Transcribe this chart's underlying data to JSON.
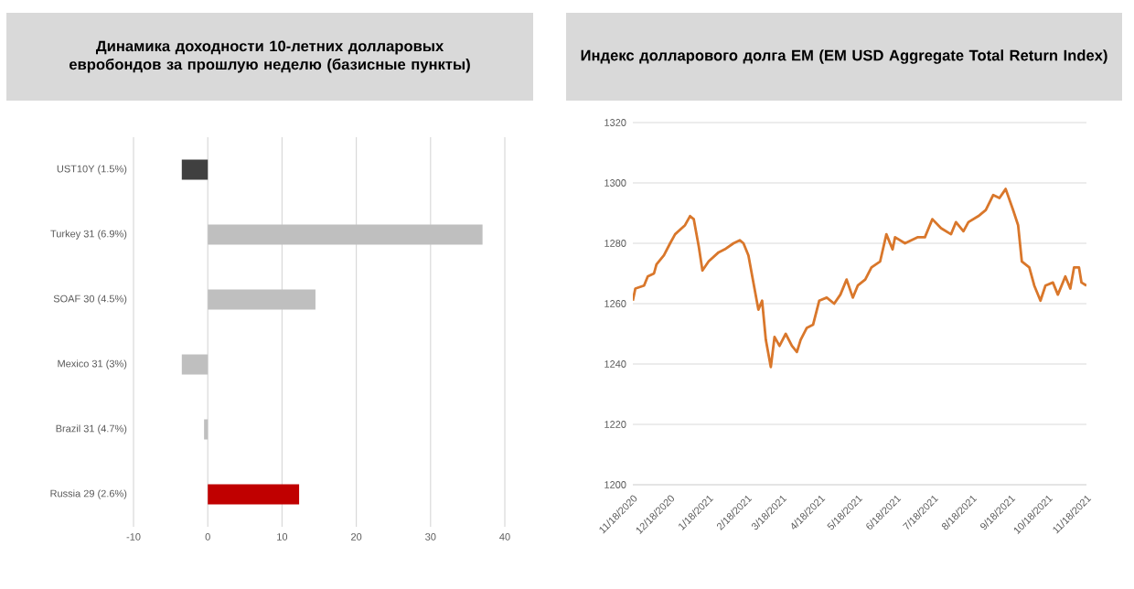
{
  "chart_data": [
    {
      "type": "bar",
      "orientation": "horizontal",
      "title": "Динамика доходности 10-летних долларовых евробондов за прошлую неделю (базисные пункты)",
      "categories": [
        "UST10Y (1.5%)",
        "Turkey 31 (6.9%)",
        "SOAF 30 (4.5%)",
        "Mexico 31 (3%)",
        "Brazil 31 (4.7%)",
        "Russia 29 (2.6%)"
      ],
      "values": [
        -3.5,
        37,
        14.5,
        -3.5,
        -0.5,
        12.3
      ],
      "colors": [
        "#404040",
        "#bfbfbf",
        "#bfbfbf",
        "#bfbfbf",
        "#bfbfbf",
        "#c00000"
      ],
      "xlim": [
        -10,
        40
      ],
      "xticks": [
        -10,
        0,
        10,
        20,
        30,
        40
      ],
      "grid": "x"
    },
    {
      "type": "line",
      "title": "Индекс долларового долга EM (EM USD Aggregate Total Return Index)",
      "x": [
        "2020-11-18",
        "2020-11-20",
        "2020-11-27",
        "2020-11-30",
        "2020-12-05",
        "2020-12-07",
        "2020-12-13",
        "2020-12-18",
        "2020-12-22",
        "2020-12-30",
        "2021-01-03",
        "2021-01-06",
        "2021-01-10",
        "2021-01-13",
        "2021-01-18",
        "2021-01-26",
        "2021-01-31",
        "2021-02-07",
        "2021-02-12",
        "2021-02-15",
        "2021-02-19",
        "2021-02-23",
        "2021-02-27",
        "2021-03-02",
        "2021-03-05",
        "2021-03-09",
        "2021-03-12",
        "2021-03-16",
        "2021-03-21",
        "2021-03-26",
        "2021-03-30",
        "2021-04-02",
        "2021-04-07",
        "2021-04-12",
        "2021-04-17",
        "2021-04-23",
        "2021-04-29",
        "2021-05-04",
        "2021-05-09",
        "2021-05-14",
        "2021-05-18",
        "2021-05-24",
        "2021-05-29",
        "2021-06-05",
        "2021-06-10",
        "2021-06-15",
        "2021-06-17",
        "2021-06-25",
        "2021-07-05",
        "2021-07-11",
        "2021-07-17",
        "2021-07-24",
        "2021-08-01",
        "2021-08-05",
        "2021-08-11",
        "2021-08-15",
        "2021-08-23",
        "2021-08-29",
        "2021-09-04",
        "2021-09-09",
        "2021-09-14",
        "2021-09-20",
        "2021-09-24",
        "2021-09-27",
        "2021-10-03",
        "2021-10-07",
        "2021-10-12",
        "2021-10-16",
        "2021-10-22",
        "2021-10-26",
        "2021-11-01",
        "2021-11-05",
        "2021-11-08",
        "2021-11-12",
        "2021-11-14",
        "2021-11-18"
      ],
      "values": [
        1261,
        1265,
        1266,
        1269,
        1270,
        1273,
        1276,
        1280,
        1283,
        1286,
        1289,
        1288,
        1279,
        1271,
        1274,
        1277,
        1278,
        1280,
        1281,
        1280,
        1276,
        1267,
        1258,
        1261,
        1248,
        1239,
        1249,
        1246,
        1250,
        1246,
        1244,
        1248,
        1252,
        1253,
        1261,
        1262,
        1260,
        1263,
        1268,
        1262,
        1266,
        1268,
        1272,
        1274,
        1283,
        1278,
        1282,
        1280,
        1282,
        1282,
        1288,
        1285,
        1283,
        1287,
        1284,
        1287,
        1289,
        1291,
        1296,
        1295,
        1298,
        1291,
        1286,
        1274,
        1272,
        1266,
        1261,
        1266,
        1267,
        1263,
        1269,
        1265,
        1272,
        1272,
        1267,
        1266
      ],
      "color": "#d9772b",
      "xlim": [
        "2020-11-18",
        "2021-11-18"
      ],
      "xticks": [
        {
          "value": "2020-11-18",
          "label": "11/18/2020"
        },
        {
          "value": "2020-12-18",
          "label": "12/18/2020"
        },
        {
          "value": "2021-01-18",
          "label": "1/18/2021"
        },
        {
          "value": "2021-02-18",
          "label": "2/18/2021"
        },
        {
          "value": "2021-03-18",
          "label": "3/18/2021"
        },
        {
          "value": "2021-04-18",
          "label": "4/18/2021"
        },
        {
          "value": "2021-05-18",
          "label": "5/18/2021"
        },
        {
          "value": "2021-06-18",
          "label": "6/18/2021"
        },
        {
          "value": "2021-07-18",
          "label": "7/18/2021"
        },
        {
          "value": "2021-08-18",
          "label": "8/18/2021"
        },
        {
          "value": "2021-09-18",
          "label": "9/18/2021"
        },
        {
          "value": "2021-10-18",
          "label": "10/18/2021"
        },
        {
          "value": "2021-11-18",
          "label": "11/18/2021"
        }
      ],
      "ylim": [
        1200,
        1320
      ],
      "yticks": [
        1200,
        1220,
        1240,
        1260,
        1280,
        1300,
        1320
      ],
      "grid": "y"
    }
  ]
}
